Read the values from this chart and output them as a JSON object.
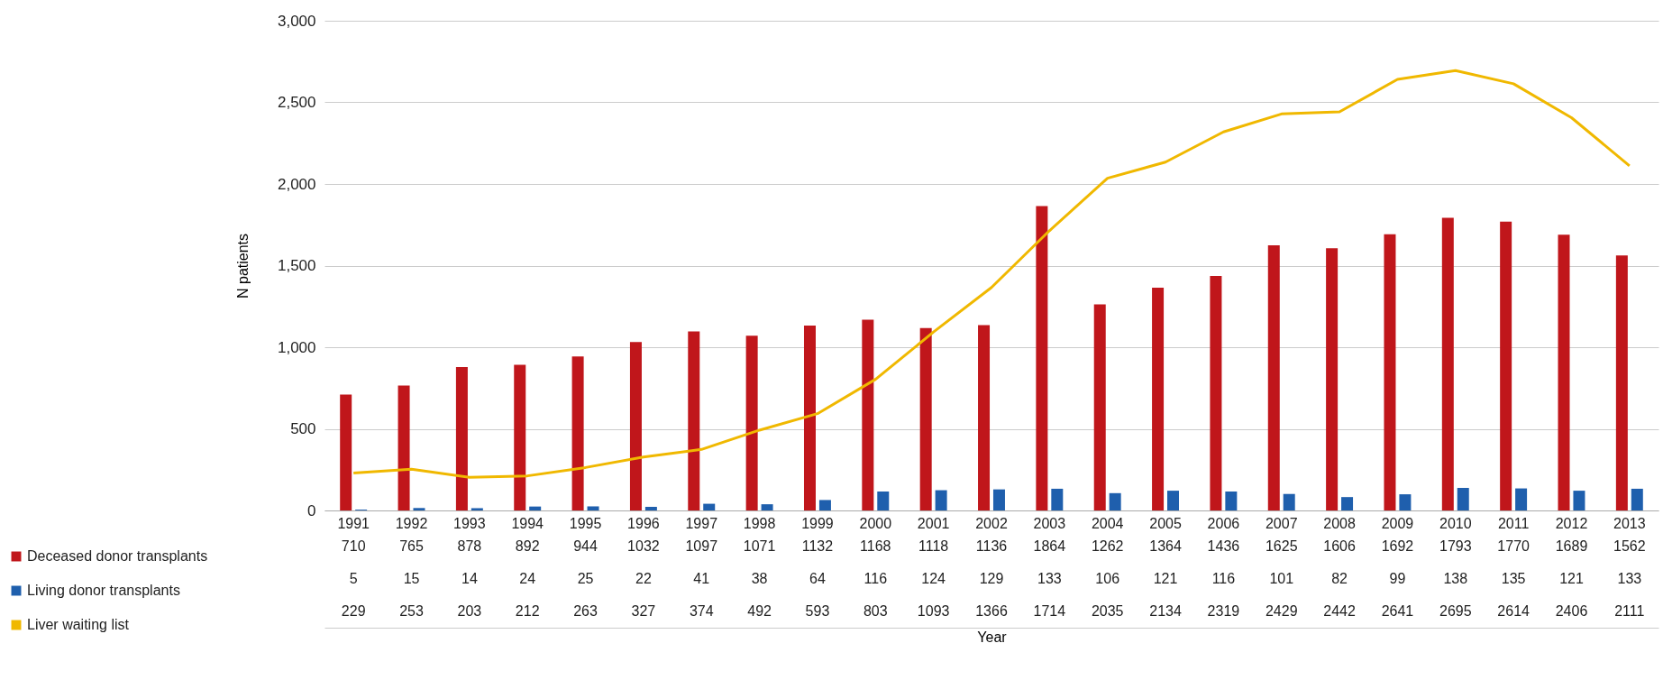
{
  "chart_data": {
    "type": "bar",
    "annotations": [
      "Year"
    ],
    "ylabel": "N patients",
    "categories": [
      "1991",
      "1992",
      "1993",
      "1994",
      "1995",
      "1996",
      "1997",
      "1998",
      "1999",
      "2000",
      "2001",
      "2002",
      "2003",
      "2004",
      "2005",
      "2006",
      "2007",
      "2008",
      "2009",
      "2010",
      "2011",
      "2012",
      "2013"
    ],
    "series": [
      {
        "name": "Deceased donor transplants",
        "color": "#c0161b",
        "values": [
          710,
          765,
          878,
          892,
          944,
          1032,
          1097,
          1071,
          1132,
          1168,
          1118,
          1136,
          1864,
          1262,
          1364,
          1436,
          1625,
          1606,
          1692,
          1793,
          1770,
          1689,
          1562
        ]
      },
      {
        "name": "Living donor transplants",
        "color": "#1f5fad",
        "values": [
          5,
          15,
          14,
          24,
          25,
          22,
          41,
          38,
          64,
          116,
          124,
          129,
          133,
          106,
          121,
          116,
          101,
          82,
          99,
          138,
          135,
          121,
          133
        ]
      },
      {
        "name": "Liver waiting list",
        "color": "#f0b800",
        "type": "line",
        "values": [
          229,
          253,
          203,
          212,
          263,
          327,
          374,
          492,
          593,
          803,
          1093,
          1366,
          1714,
          2035,
          2134,
          2319,
          2429,
          2442,
          2641,
          2695,
          2614,
          2406,
          2111
        ]
      }
    ],
    "ylim": [
      0,
      3000
    ],
    "yticks": [
      0,
      500,
      {
        "value": 1000,
        "label": "1,000"
      },
      {
        "value": 1500,
        "label": "1,500"
      },
      {
        "value": 2000,
        "label": "2,000"
      },
      {
        "value": 2500,
        "label": "2,500"
      },
      {
        "value": 3000,
        "label": "3,000"
      }
    ],
    "grid": "y",
    "legend": "bottom left",
    "data_labels": true,
    "marker": "none",
    "line_style": "solid"
  }
}
